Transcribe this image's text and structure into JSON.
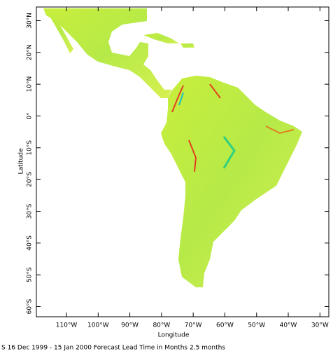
{
  "chart_data": {
    "type": "map",
    "xlabel": "Longitude",
    "ylabel": "Latitude",
    "caption": "S 16 Dec 1999 - 15 Jan 2000 Forecast Lead Time in Months 2.5 months",
    "xlim": [
      -119.5,
      -27.2
    ],
    "ylim": [
      -63.2,
      34.3
    ],
    "xticks": [
      {
        "value": -110,
        "label": "110°W"
      },
      {
        "value": -100,
        "label": "100°W"
      },
      {
        "value": -90,
        "label": "90°W"
      },
      {
        "value": -80,
        "label": "80°W"
      },
      {
        "value": -70,
        "label": "70°W"
      },
      {
        "value": -60,
        "label": "60°W"
      },
      {
        "value": -50,
        "label": "50°W"
      },
      {
        "value": -40,
        "label": "40°W"
      },
      {
        "value": -30,
        "label": "30°W"
      }
    ],
    "yticks": [
      {
        "value": 30,
        "label": "30°N"
      },
      {
        "value": 20,
        "label": "20°N"
      },
      {
        "value": 10,
        "label": "10°N"
      },
      {
        "value": 0,
        "label": "0°"
      },
      {
        "value": -10,
        "label": "10°S"
      },
      {
        "value": -20,
        "label": "20°S"
      },
      {
        "value": -30,
        "label": "30°S"
      },
      {
        "value": -40,
        "label": "40°S"
      },
      {
        "value": -50,
        "label": "50°S"
      },
      {
        "value": -60,
        "label": "60°S"
      }
    ]
  }
}
